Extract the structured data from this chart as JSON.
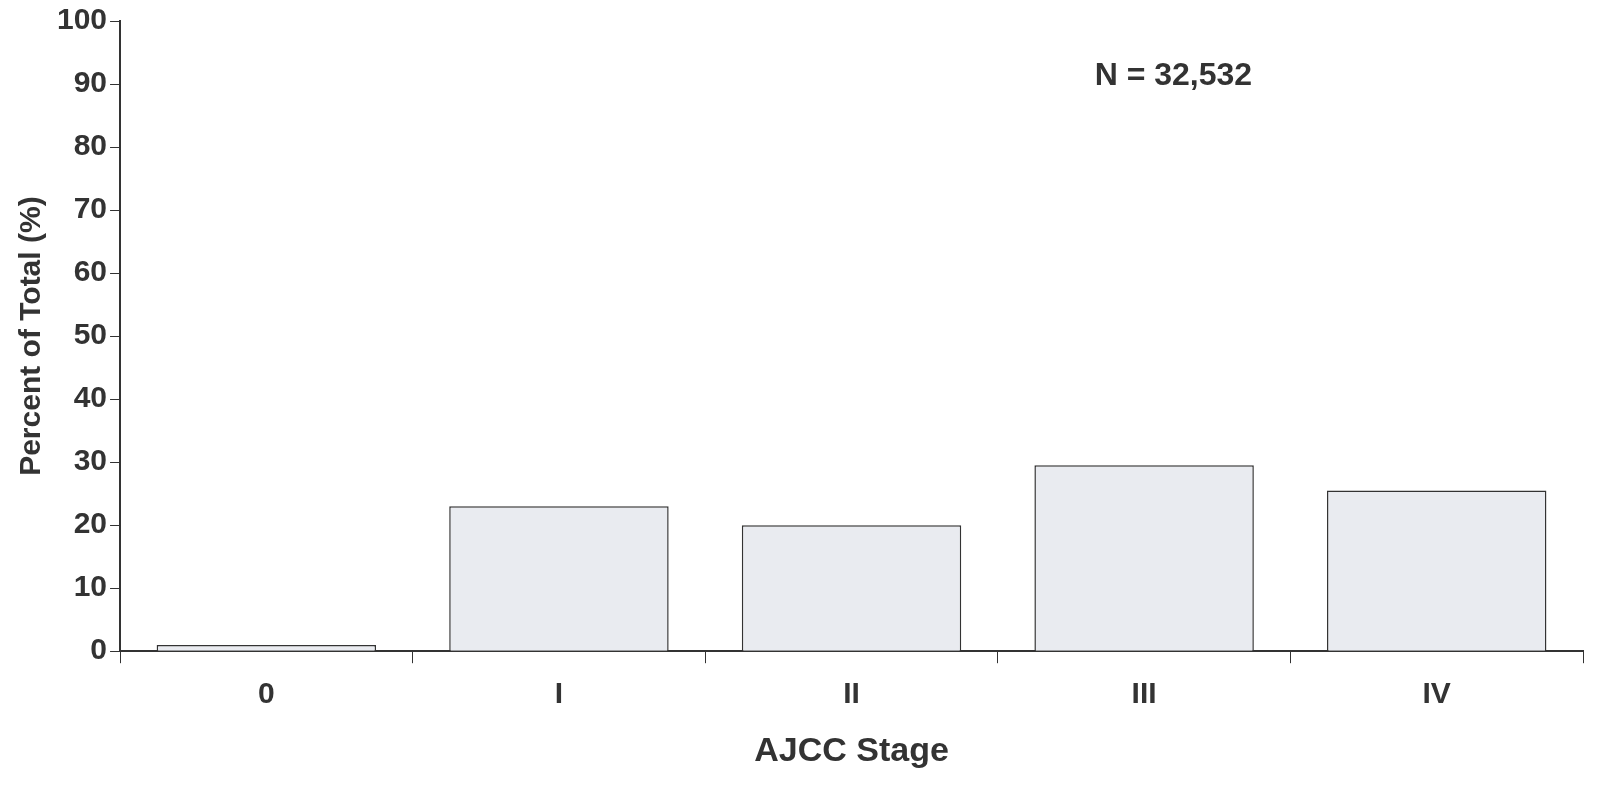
{
  "chart_data": {
    "type": "bar",
    "categories": [
      "0",
      "I",
      "II",
      "III",
      "IV"
    ],
    "values": [
      1,
      23,
      20,
      29.5,
      25.5
    ],
    "color": "#e9ebf0",
    "xlabel": "AJCC Stage",
    "ylabel": "Percent of Total (%)",
    "ylim": [
      0,
      100
    ],
    "yticks": [
      0,
      10,
      20,
      30,
      40,
      50,
      60,
      70,
      80,
      90,
      100
    ],
    "annotations": [
      "N = 32,532"
    ],
    "grid": false,
    "legend": false
  }
}
